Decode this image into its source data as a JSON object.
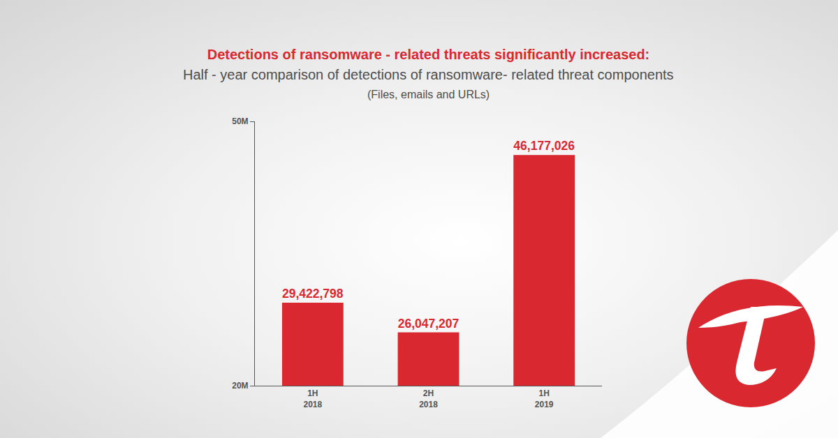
{
  "chart_data": {
    "type": "bar",
    "title": "Detections of ransomware - related threats significantly increased:",
    "subtitle": "Half - year comparison of detections of ransomware- related threat components\n(Files, emails and URLs)",
    "categories": [
      "1H\n2018",
      "2H\n2018",
      "1H\n2019"
    ],
    "values": [
      29422798,
      26047207,
      46177026
    ],
    "value_labels": [
      "29,422,798",
      "26,047,207",
      "46,177,026"
    ],
    "color": "#d9282f",
    "data_labels": true,
    "ylim": [
      20000000,
      50000000
    ],
    "yticks": [
      {
        "value": 20000000,
        "label": "20M"
      },
      {
        "value": 50000000,
        "label": "50M"
      }
    ],
    "grid": true
  }
}
